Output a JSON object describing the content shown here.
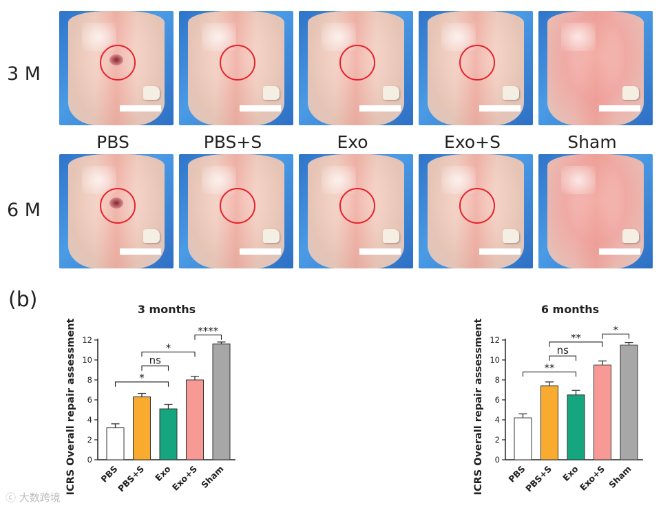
{
  "panel_a": {
    "row_labels": [
      "3 M",
      "6 M"
    ],
    "column_labels": [
      "PBS",
      "PBS+S",
      "Exo",
      "Exo+S",
      "Sham"
    ]
  },
  "panel_label": "(b)",
  "watermark": "大数跨境",
  "chart_data": [
    {
      "type": "bar",
      "title": "3 months",
      "ylabel": "ICRS Overall repair assessment",
      "xlabel": "",
      "ylim": [
        0,
        12
      ],
      "yticks": [
        0,
        2,
        4,
        6,
        8,
        10,
        12
      ],
      "categories": [
        "PBS",
        "PBS+S",
        "Exo",
        "Exo+S",
        "Sham"
      ],
      "values": [
        3.2,
        6.3,
        5.1,
        8.0,
        11.6
      ],
      "errors": [
        0.4,
        0.35,
        0.45,
        0.35,
        0.2
      ],
      "colors": [
        "#ffffff",
        "#f8ab2f",
        "#16a67f",
        "#f79a95",
        "#a7a7a7"
      ],
      "significance": [
        {
          "from": 0,
          "to": 2,
          "label": "*",
          "y": 7.8
        },
        {
          "from": 1,
          "to": 2,
          "label": "ns",
          "y": 9.4
        },
        {
          "from": 1,
          "to": 3,
          "label": "*",
          "y": 10.8
        },
        {
          "from": 3,
          "to": 4,
          "label": "****",
          "y": 12.5
        }
      ]
    },
    {
      "type": "bar",
      "title": "6 months",
      "ylabel": "ICRS Overall repair assessment",
      "xlabel": "",
      "ylim": [
        0,
        12
      ],
      "yticks": [
        0,
        2,
        4,
        6,
        8,
        10,
        12
      ],
      "categories": [
        "PBS",
        "PBS+S",
        "Exo",
        "Exo+S",
        "Sham"
      ],
      "values": [
        4.2,
        7.4,
        6.5,
        9.5,
        11.5
      ],
      "errors": [
        0.4,
        0.4,
        0.45,
        0.4,
        0.25
      ],
      "colors": [
        "#ffffff",
        "#f8ab2f",
        "#16a67f",
        "#f79a95",
        "#a7a7a7"
      ],
      "significance": [
        {
          "from": 0,
          "to": 2,
          "label": "**",
          "y": 8.8
        },
        {
          "from": 1,
          "to": 2,
          "label": "ns",
          "y": 10.4
        },
        {
          "from": 1,
          "to": 3,
          "label": "**",
          "y": 11.8
        },
        {
          "from": 3,
          "to": 4,
          "label": "*",
          "y": 12.6
        }
      ]
    }
  ]
}
